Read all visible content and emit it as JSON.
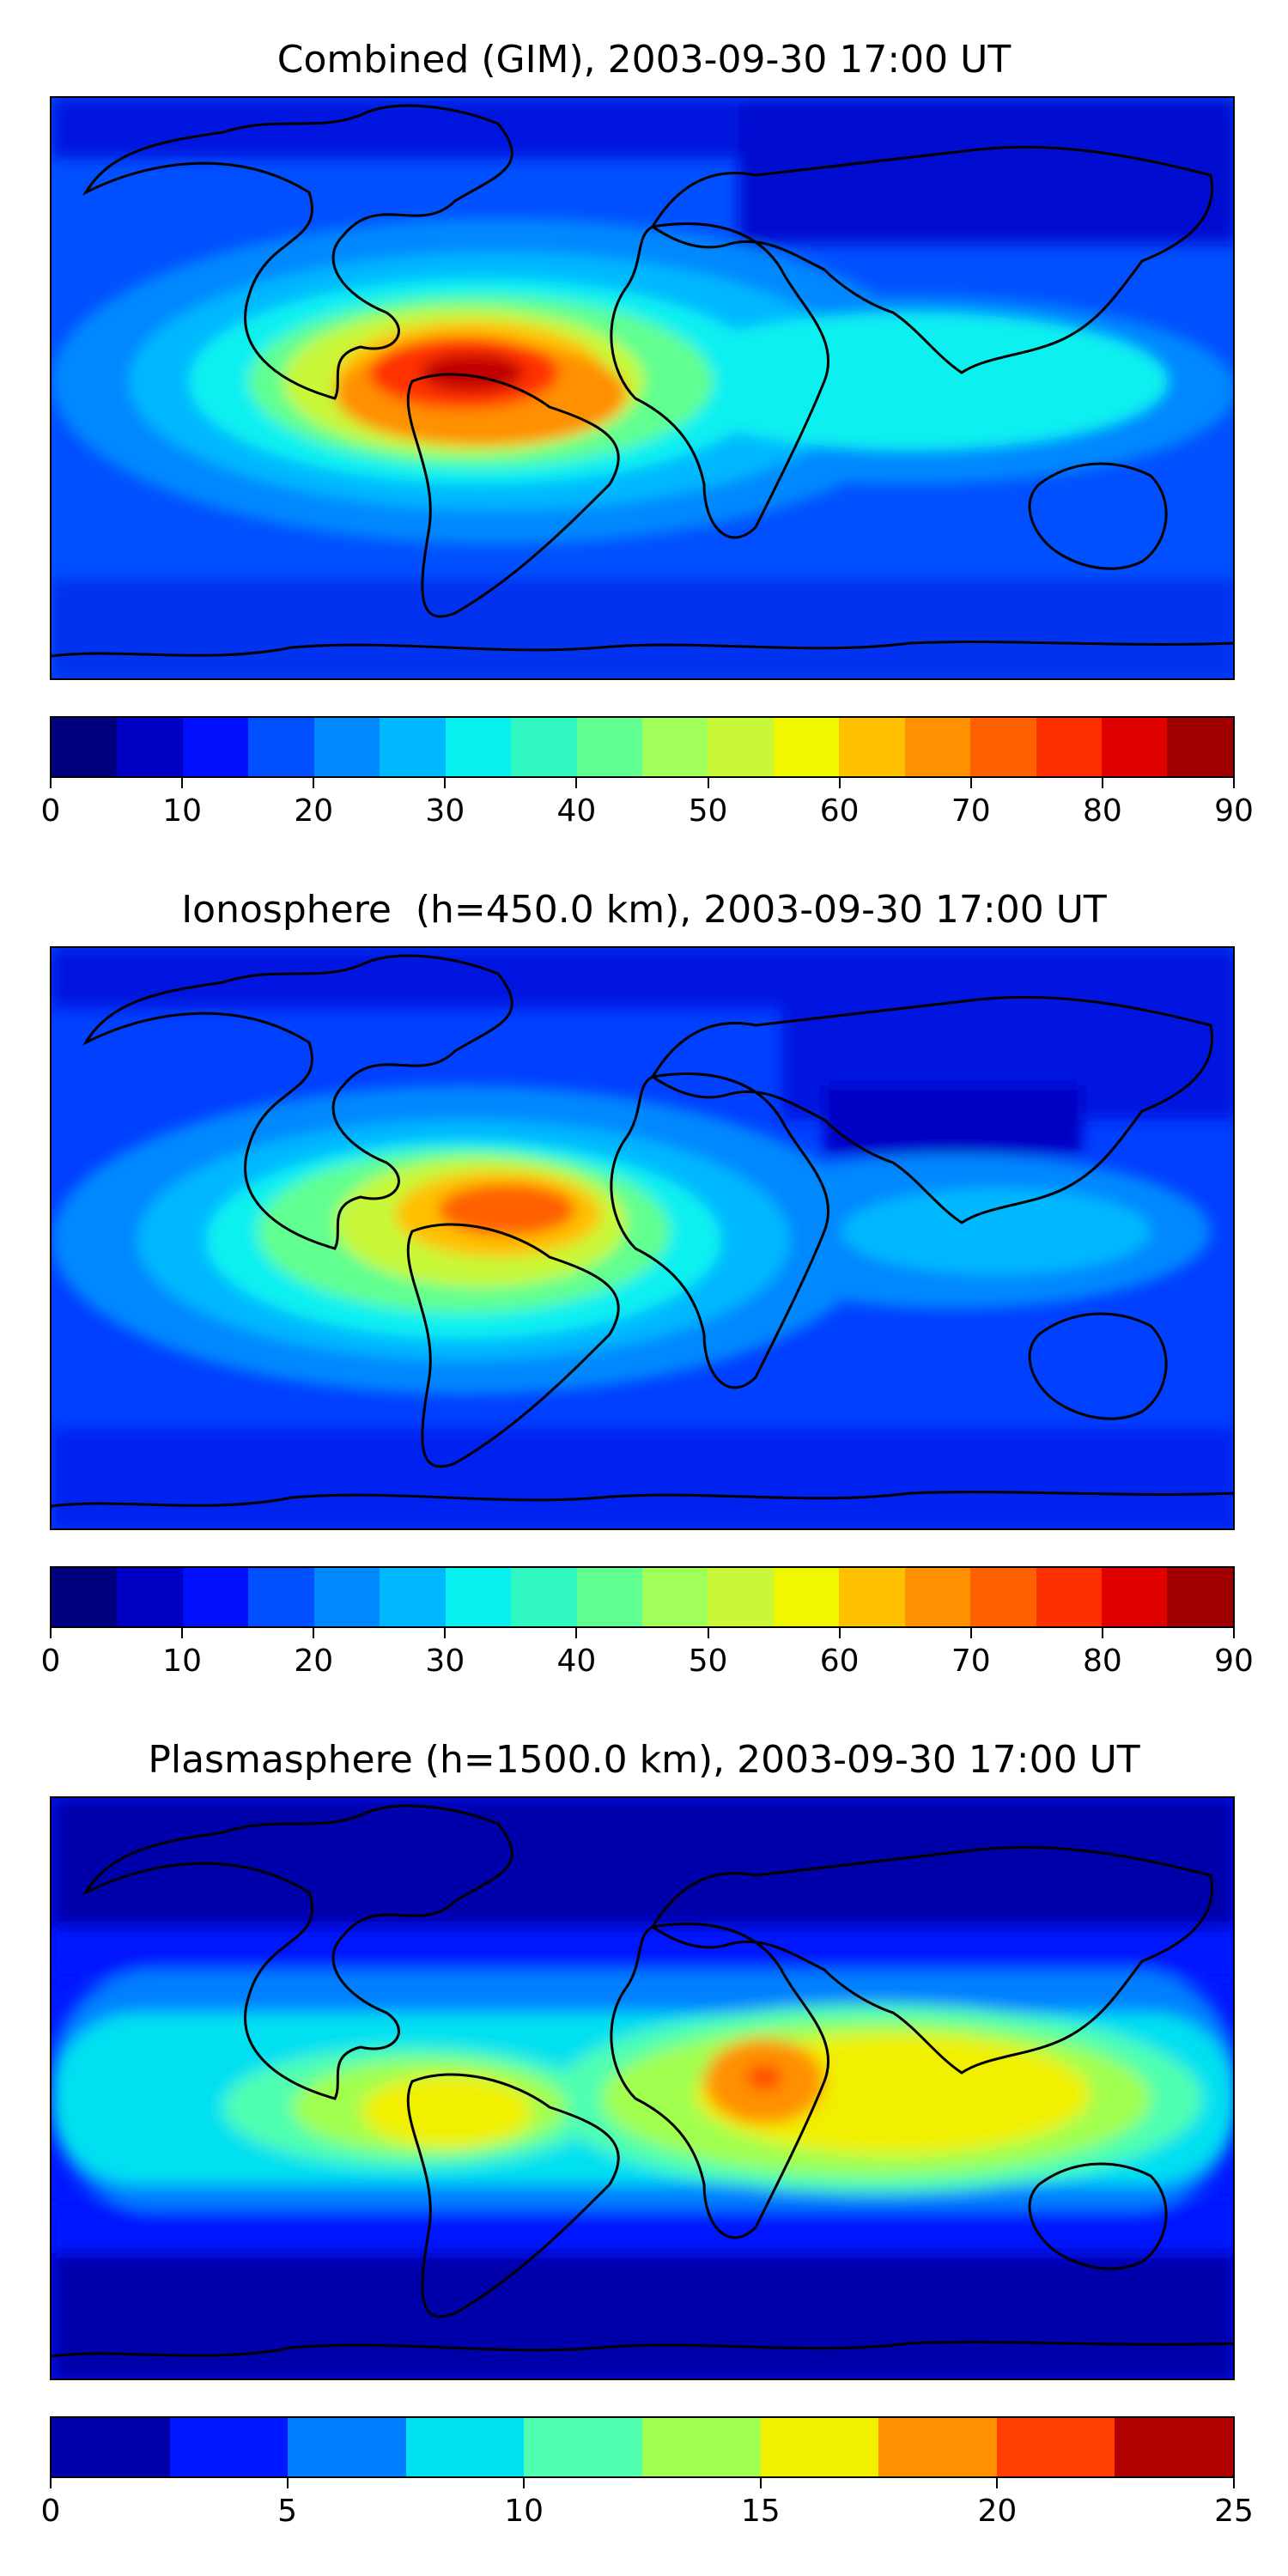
{
  "panels": [
    {
      "title": "Combined (GIM), 2003-09-30 17:00 UT",
      "colorbar": {
        "colors": [
          "#00007f",
          "#0000c4",
          "#0010ff",
          "#0050ff",
          "#0088ff",
          "#00b8ff",
          "#08f0f0",
          "#30f8c0",
          "#60ff90",
          "#a0ff58",
          "#c8f838",
          "#f0f800",
          "#ffc000",
          "#ff9000",
          "#ff6000",
          "#ff3000",
          "#e00000",
          "#a00000"
        ],
        "ticks": [
          "0",
          "10",
          "20",
          "30",
          "40",
          "50",
          "60",
          "70",
          "80",
          "90"
        ]
      }
    },
    {
      "title": "Ionosphere  (h=450.0 km), 2003-09-30 17:00 UT",
      "colorbar": {
        "colors": [
          "#00007f",
          "#0000c4",
          "#0010ff",
          "#0050ff",
          "#0088ff",
          "#00b8ff",
          "#08f0f0",
          "#30f8c0",
          "#60ff90",
          "#a0ff58",
          "#c8f838",
          "#f0f800",
          "#ffc000",
          "#ff9000",
          "#ff6000",
          "#ff3000",
          "#e00000",
          "#a00000"
        ],
        "ticks": [
          "0",
          "10",
          "20",
          "30",
          "40",
          "50",
          "60",
          "70",
          "80",
          "90"
        ]
      }
    },
    {
      "title": "Plasmasphere (h=1500.0 km), 2003-09-30 17:00 UT",
      "colorbar": {
        "colors": [
          "#0000aa",
          "#0018ff",
          "#0080ff",
          "#00e0f0",
          "#50ffb0",
          "#a0ff50",
          "#f0f000",
          "#ff9000",
          "#ff4000",
          "#b00000"
        ],
        "ticks": [
          "0",
          "5",
          "10",
          "15",
          "20",
          "25"
        ]
      }
    }
  ]
}
